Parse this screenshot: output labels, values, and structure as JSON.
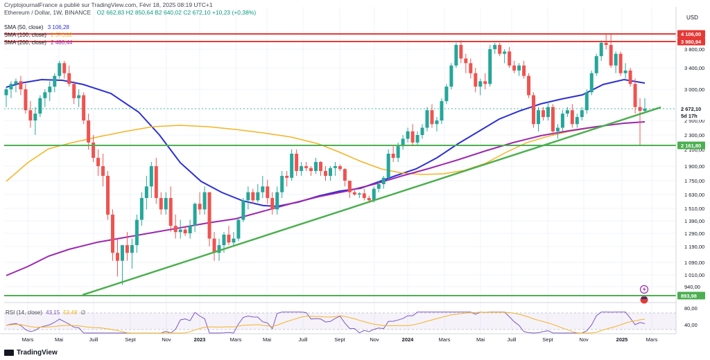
{
  "header": {
    "publisher": "CryptojournalFrance a publié sur TradingView.com, Févr 18, 2025 08:19 UTC+1",
    "symbol_line": "Ethereum / Dollar, 1W, BINANCE",
    "ohlc": "O2 662,83  H2 850,64  B2 640,02  C2 672,10  +10,23 (+0,38%)",
    "currency": "USD"
  },
  "indicators": {
    "sma50": {
      "label": "SMA (50, close)",
      "value": "3 106,28",
      "color": "#2b2fd4"
    },
    "sma100": {
      "label": "SMA (100, close)",
      "value": "2 576,92",
      "color": "#f5b321"
    },
    "sma200": {
      "label": "SMA (200, close)",
      "value": "2 486,44",
      "color": "#9c27b0"
    },
    "rsi": {
      "label": "RSI (14, close)",
      "value1": "43,15",
      "value2": "53,48",
      "value3": "∅",
      "color": "#7e57c2"
    }
  },
  "price_axis": {
    "ticks": [
      "3 800,00",
      "3 400,00",
      "3 000,00",
      "2 500,00",
      "2 300,00",
      "2 100,00",
      "1 900,00",
      "1 750,00",
      "1 630,00",
      "1 510,00",
      "1 390,00",
      "1 290,00",
      "1 190,00",
      "1 090,00",
      "1 010,00",
      "940,00"
    ],
    "badges": [
      {
        "text": "4 106,00",
        "color": "#e53935"
      },
      {
        "text": "3 980,94",
        "color": "#e53935"
      },
      {
        "text": "2 672,10",
        "color": "#ffffff",
        "text_color": "#131722"
      },
      {
        "text": "5d 17h",
        "color": "#ffffff",
        "text_color": "#131722"
      },
      {
        "text": "2 161,80",
        "color": "#4caf50"
      },
      {
        "text": "893,98",
        "color": "#4caf50"
      }
    ],
    "rsi_ticks": [
      "80,00",
      "40,00"
    ]
  },
  "time_axis": {
    "labels": [
      "Mars",
      "Mai",
      "Juill",
      "Sept",
      "Nov",
      "2023",
      "Mars",
      "Mai",
      "Juill",
      "Sept",
      "Nov",
      "2024",
      "Mars",
      "Mai",
      "Juill",
      "Sept",
      "Nov",
      "2025",
      "Mars"
    ]
  },
  "footer": {
    "brand": "TradingView"
  },
  "chart_data": {
    "type": "candlestick",
    "title": "Ethereum / Dollar, 1W, BINANCE",
    "ylabel": "USD",
    "horizontal_levels": [
      4106.0,
      3980.94,
      2161.8,
      893.98
    ],
    "last_close": 2672.1,
    "ohlc_weekly_approx": [
      [
        2900,
        3050,
        2700,
        3000
      ],
      [
        3000,
        3150,
        2850,
        3100
      ],
      [
        3100,
        3200,
        2950,
        3150
      ],
      [
        3150,
        3250,
        2900,
        3000
      ],
      [
        3000,
        3100,
        2600,
        2650
      ],
      [
        2650,
        2800,
        2400,
        2500
      ],
      [
        2500,
        2700,
        2300,
        2600
      ],
      [
        2600,
        2900,
        2550,
        2850
      ],
      [
        2850,
        3000,
        2700,
        2950
      ],
      [
        2950,
        3150,
        2800,
        3050
      ],
      [
        3050,
        3300,
        2950,
        3250
      ],
      [
        3250,
        3550,
        3200,
        3500
      ],
      [
        3500,
        3550,
        3200,
        3300
      ],
      [
        3300,
        3450,
        3050,
        3100
      ],
      [
        3100,
        3150,
        2750,
        2850
      ],
      [
        2850,
        3000,
        2700,
        2900
      ],
      [
        2900,
        2950,
        2450,
        2500
      ],
      [
        2500,
        2600,
        2100,
        2200
      ],
      [
        2200,
        2300,
        1950,
        2000
      ],
      [
        2000,
        2100,
        1800,
        1900
      ],
      [
        1900,
        2050,
        1700,
        1800
      ],
      [
        1800,
        1850,
        1400,
        1450
      ],
      [
        1450,
        1500,
        1100,
        1150
      ],
      [
        1150,
        1250,
        1000,
        1100
      ],
      [
        1100,
        1200,
        950,
        1200
      ],
      [
        1200,
        1300,
        1100,
        1150
      ],
      [
        1150,
        1250,
        1050,
        1200
      ],
      [
        1200,
        1450,
        1150,
        1400
      ],
      [
        1400,
        1650,
        1350,
        1600
      ],
      [
        1600,
        1800,
        1500,
        1700
      ],
      [
        1700,
        1950,
        1600,
        1900
      ],
      [
        1900,
        2000,
        1550,
        1600
      ],
      [
        1600,
        1650,
        1450,
        1500
      ],
      [
        1500,
        1650,
        1450,
        1600
      ],
      [
        1600,
        1700,
        1300,
        1350
      ],
      [
        1350,
        1450,
        1250,
        1300
      ],
      [
        1300,
        1400,
        1250,
        1320
      ],
      [
        1320,
        1340,
        1270,
        1290
      ],
      [
        1290,
        1400,
        1250,
        1350
      ],
      [
        1350,
        1560,
        1300,
        1550
      ],
      [
        1550,
        1650,
        1450,
        1500
      ],
      [
        1500,
        1700,
        1450,
        1650
      ],
      [
        1650,
        1620,
        1190,
        1250
      ],
      [
        1250,
        1300,
        1100,
        1150
      ],
      [
        1150,
        1250,
        1100,
        1200
      ],
      [
        1200,
        1300,
        1150,
        1280
      ],
      [
        1280,
        1350,
        1200,
        1220
      ],
      [
        1220,
        1300,
        1200,
        1250
      ],
      [
        1250,
        1420,
        1230,
        1400
      ],
      [
        1400,
        1600,
        1380,
        1580
      ],
      [
        1580,
        1700,
        1500,
        1650
      ],
      [
        1650,
        1680,
        1550,
        1580
      ],
      [
        1580,
        1720,
        1560,
        1650
      ],
      [
        1650,
        1800,
        1600,
        1700
      ],
      [
        1700,
        1760,
        1550,
        1600
      ],
      [
        1600,
        1650,
        1450,
        1500
      ],
      [
        1500,
        1700,
        1450,
        1650
      ],
      [
        1650,
        1850,
        1600,
        1800
      ],
      [
        1800,
        1850,
        1700,
        1780
      ],
      [
        1780,
        2100,
        1750,
        2050
      ],
      [
        2050,
        2100,
        1800,
        1850
      ],
      [
        1850,
        1950,
        1800,
        1900
      ],
      [
        1900,
        1950,
        1850,
        1880
      ],
      [
        1880,
        1900,
        1800,
        1850
      ],
      [
        1850,
        2000,
        1820,
        1950
      ],
      [
        1950,
        1960,
        1800,
        1850
      ],
      [
        1850,
        1900,
        1750,
        1800
      ],
      [
        1800,
        1900,
        1750,
        1880
      ],
      [
        1880,
        1950,
        1800,
        1900
      ],
      [
        1900,
        1920,
        1850,
        1870
      ],
      [
        1870,
        1880,
        1700,
        1750
      ],
      [
        1750,
        1720,
        1600,
        1650
      ],
      [
        1650,
        1680,
        1620,
        1630
      ],
      [
        1630,
        1650,
        1600,
        1640
      ],
      [
        1640,
        1680,
        1580,
        1600
      ],
      [
        1600,
        1620,
        1560,
        1580
      ],
      [
        1580,
        1700,
        1560,
        1680
      ],
      [
        1680,
        1750,
        1650,
        1720
      ],
      [
        1720,
        1800,
        1680,
        1780
      ],
      [
        1780,
        2100,
        1750,
        2050
      ],
      [
        2050,
        2150,
        1950,
        2000
      ],
      [
        2000,
        2200,
        1950,
        2150
      ],
      [
        2150,
        2300,
        2100,
        2250
      ],
      [
        2250,
        2400,
        2200,
        2350
      ],
      [
        2350,
        2450,
        2150,
        2200
      ],
      [
        2200,
        2350,
        2150,
        2300
      ],
      [
        2300,
        2450,
        2250,
        2400
      ],
      [
        2400,
        2700,
        2350,
        2650
      ],
      [
        2650,
        2750,
        2400,
        2450
      ],
      [
        2450,
        2550,
        2350,
        2500
      ],
      [
        2500,
        2850,
        2450,
        2800
      ],
      [
        2800,
        3100,
        2750,
        3050
      ],
      [
        3050,
        3500,
        3000,
        3450
      ],
      [
        3450,
        3950,
        3400,
        3900
      ],
      [
        3900,
        4000,
        3500,
        3600
      ],
      [
        3600,
        3700,
        3300,
        3500
      ],
      [
        3500,
        3600,
        3200,
        3300
      ],
      [
        3300,
        3400,
        2950,
        3050
      ],
      [
        3050,
        3200,
        2900,
        3150
      ],
      [
        3150,
        3300,
        3000,
        3100
      ],
      [
        3100,
        3900,
        3050,
        3800
      ],
      [
        3800,
        3950,
        3700,
        3900
      ],
      [
        3900,
        3950,
        3650,
        3700
      ],
      [
        3700,
        3800,
        3500,
        3750
      ],
      [
        3750,
        3850,
        3400,
        3450
      ],
      [
        3450,
        3550,
        3300,
        3350
      ],
      [
        3350,
        3500,
        3250,
        3450
      ],
      [
        3450,
        3550,
        3200,
        3250
      ],
      [
        3250,
        3300,
        2850,
        2900
      ],
      [
        2900,
        2950,
        2400,
        2450
      ],
      [
        2450,
        2700,
        2350,
        2650
      ],
      [
        2650,
        2700,
        2500,
        2550
      ],
      [
        2550,
        2800,
        2500,
        2700
      ],
      [
        2700,
        2750,
        2300,
        2350
      ],
      [
        2350,
        2450,
        2250,
        2400
      ],
      [
        2400,
        2650,
        2350,
        2600
      ],
      [
        2600,
        2700,
        2550,
        2650
      ],
      [
        2650,
        2750,
        2400,
        2450
      ],
      [
        2450,
        2600,
        2400,
        2550
      ],
      [
        2550,
        2700,
        2500,
        2650
      ],
      [
        2650,
        3000,
        2600,
        2950
      ],
      [
        2950,
        3350,
        2900,
        3300
      ],
      [
        3300,
        3700,
        3250,
        3650
      ],
      [
        3650,
        4000,
        3550,
        3950
      ],
      [
        3950,
        4100,
        3800,
        3900
      ],
      [
        3900,
        4106,
        3400,
        3450
      ],
      [
        3450,
        3750,
        3300,
        3700
      ],
      [
        3700,
        3750,
        3250,
        3300
      ],
      [
        3300,
        3500,
        3200,
        3350
      ],
      [
        3350,
        3400,
        3050,
        3100
      ],
      [
        3100,
        3200,
        2600,
        2700
      ],
      [
        2700,
        2850,
        2150,
        2640
      ],
      [
        2640,
        2850,
        2630,
        2672
      ]
    ]
  }
}
